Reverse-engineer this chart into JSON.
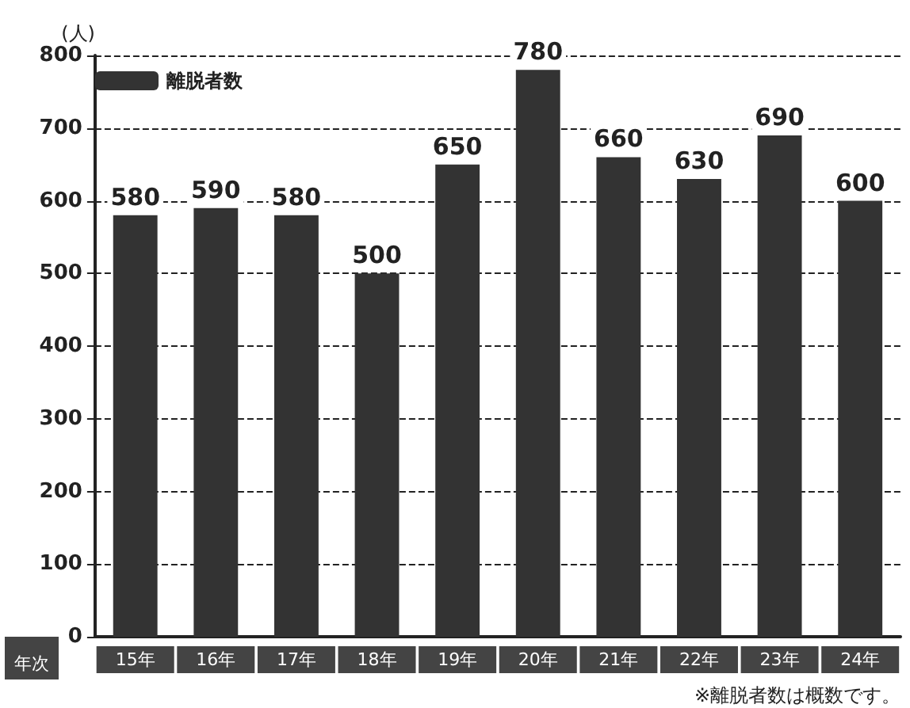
{
  "chart_data": {
    "type": "bar",
    "ylabel": "(人)",
    "xlabel": "年次",
    "categories": [
      "15年",
      "16年",
      "17年",
      "18年",
      "19年",
      "20年",
      "21年",
      "22年",
      "23年",
      "24年"
    ],
    "series": [
      {
        "name": "離脱者数",
        "color": "#333333",
        "values": [
          580,
          590,
          580,
          500,
          650,
          780,
          660,
          630,
          690,
          600
        ]
      }
    ],
    "ylim": [
      0,
      800
    ],
    "yticks": [
      0,
      100,
      200,
      300,
      400,
      500,
      600,
      700,
      800
    ],
    "grid": "y",
    "legend": "top left",
    "data_labels": true,
    "annotations": [
      "※離脱者数は概数です。"
    ]
  }
}
